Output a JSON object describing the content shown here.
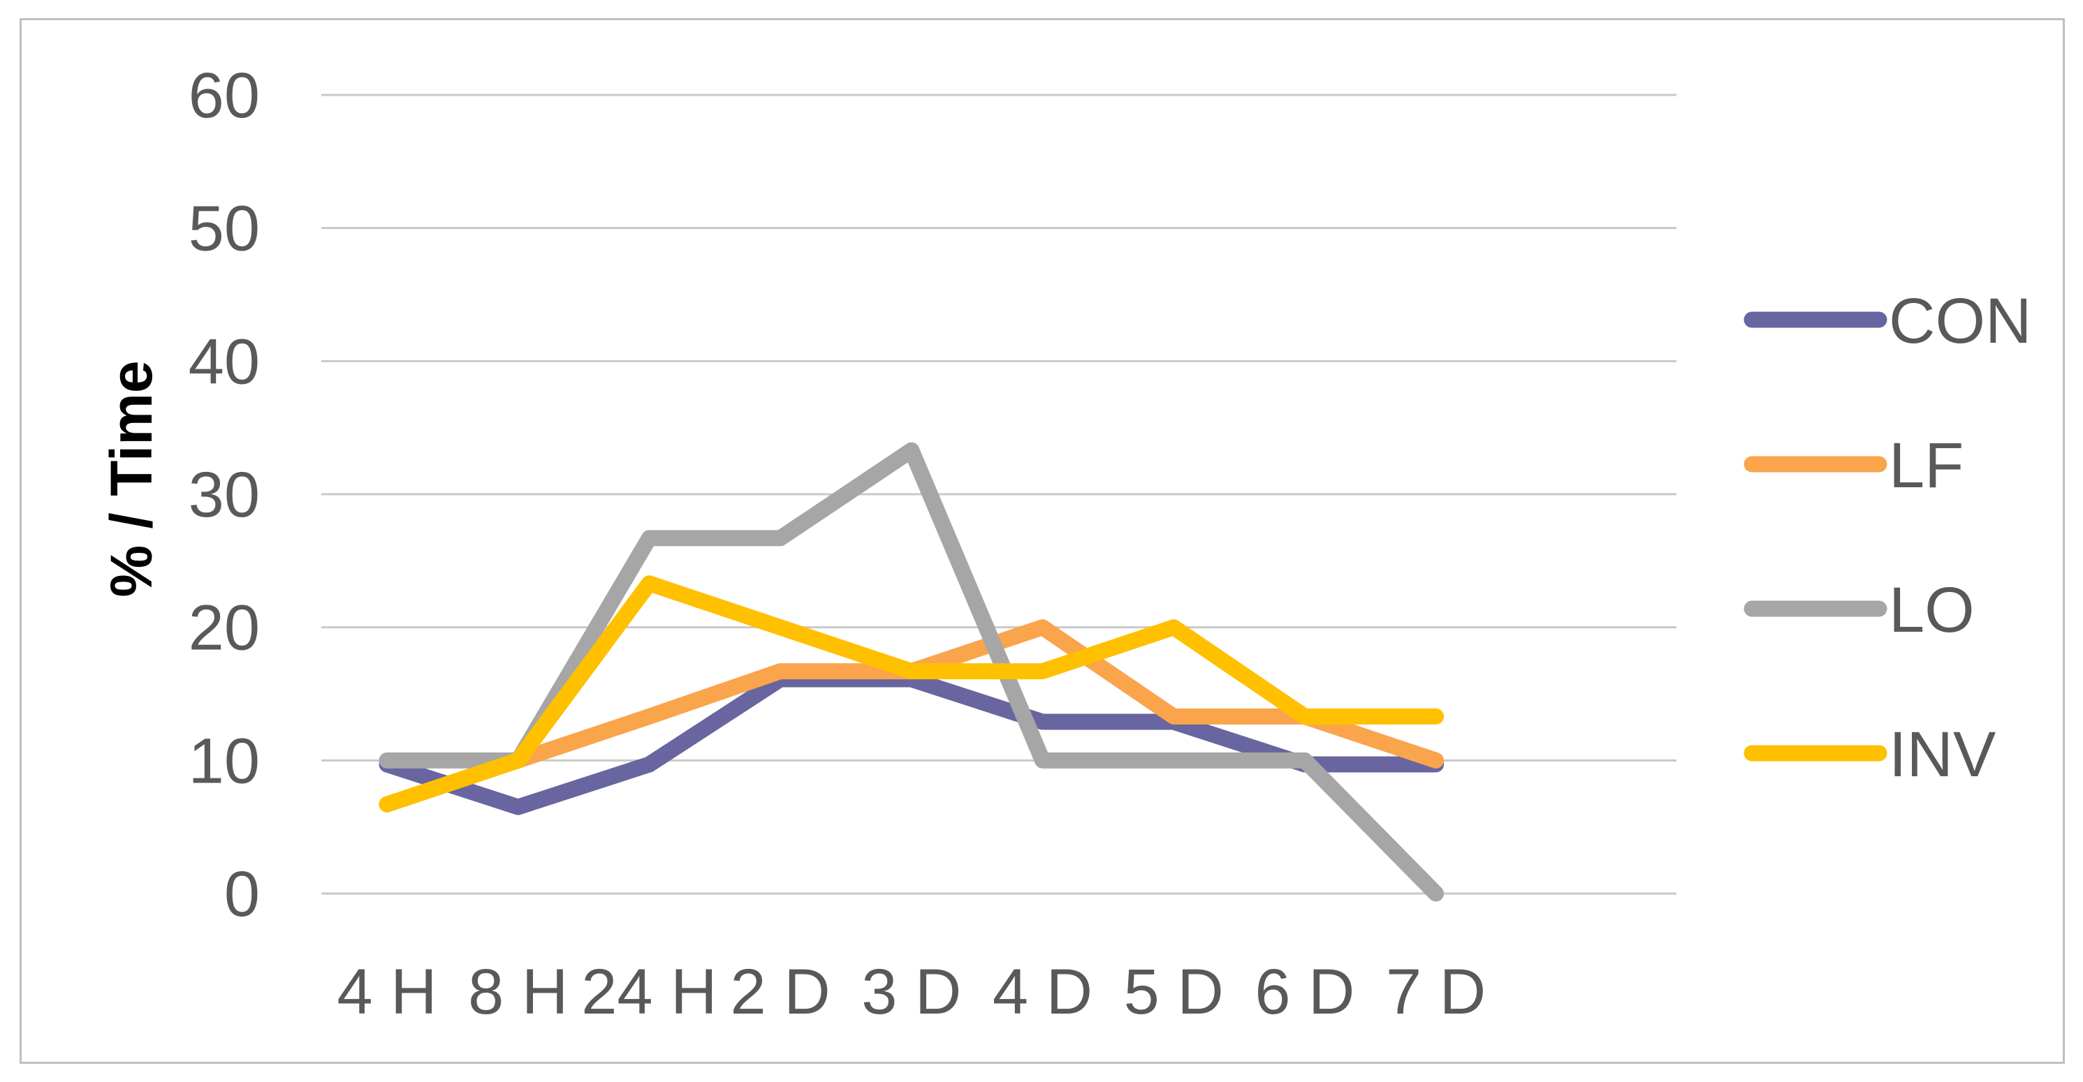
{
  "chart_data": {
    "type": "line",
    "title": "",
    "xlabel": "",
    "ylabel": "% / Time",
    "categories": [
      "4 H",
      "8 H",
      "24 H",
      "2 D",
      "3 D",
      "4 D",
      "5 D",
      "6 D",
      "7 D"
    ],
    "series": [
      {
        "name": "CON",
        "color": "#6865A0",
        "values": [
          9.7,
          6.5,
          9.7,
          16.1,
          16.1,
          12.9,
          12.9,
          9.7,
          9.7
        ]
      },
      {
        "name": "LF",
        "color": "#FAA44C",
        "values": [
          6.7,
          10,
          13.3,
          16.7,
          16.7,
          20,
          13.3,
          13.3,
          10
        ]
      },
      {
        "name": "LO",
        "color": "#A6A6A6",
        "values": [
          10,
          10,
          26.7,
          26.7,
          33.3,
          10,
          10,
          10,
          0
        ]
      },
      {
        "name": "INV",
        "color": "#FFC000",
        "values": [
          6.7,
          10,
          23.3,
          20,
          16.7,
          16.7,
          20,
          13.3,
          13.3
        ]
      }
    ],
    "y_ticks": [
      0,
      10,
      20,
      30,
      40,
      50,
      60
    ],
    "ylim": [
      0,
      60
    ],
    "grid": true,
    "legend_position": "right",
    "axis_text_color": "#595959",
    "axis_title_color": "#000000",
    "gridline_color": "#C9C9C9",
    "frame_color": "#BFBFBF",
    "line_width": 23
  }
}
